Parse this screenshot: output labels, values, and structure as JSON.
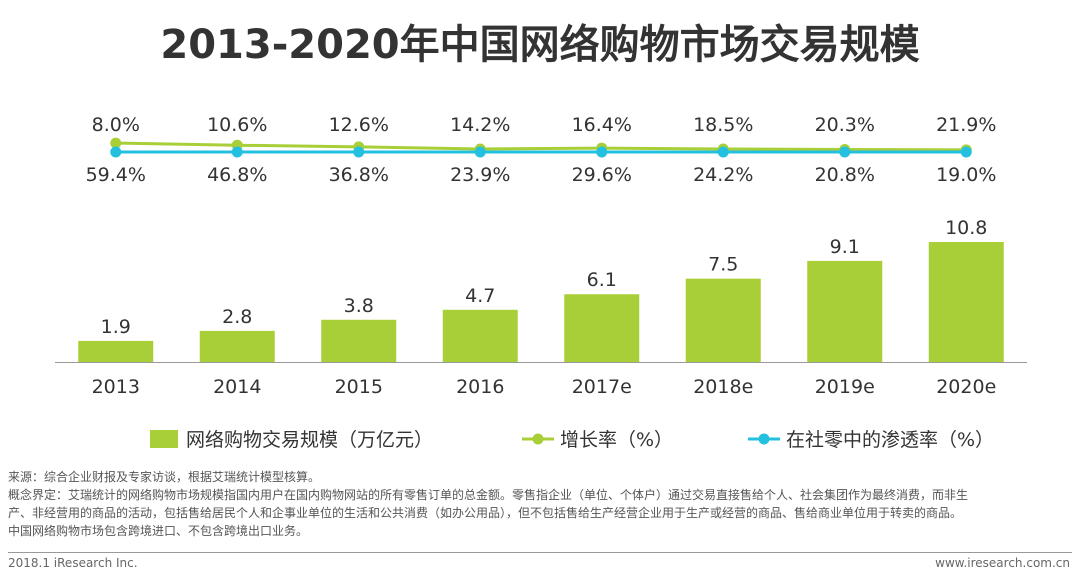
{
  "title": "2013-2020年中国网络购物市场交易规模",
  "chart_data": {
    "type": "bar",
    "categories": [
      "2013",
      "2014",
      "2015",
      "2016",
      "2017e",
      "2018e",
      "2019e",
      "2020e"
    ],
    "series": [
      {
        "name": "网络购物交易规模（万亿元）",
        "type": "bar",
        "values": [
          1.9,
          2.8,
          3.8,
          4.7,
          6.1,
          7.5,
          9.1,
          10.8
        ]
      },
      {
        "name": "增长率（%）",
        "type": "line",
        "values": [
          59.4,
          46.8,
          36.8,
          23.9,
          29.6,
          24.2,
          20.8,
          19.0
        ],
        "labels": [
          "59.4%",
          "46.8%",
          "36.8%",
          "23.9%",
          "29.6%",
          "24.2%",
          "20.8%",
          "19.0%"
        ]
      },
      {
        "name": "在社零中的渗透率（%）",
        "type": "line",
        "values": [
          8.0,
          10.6,
          12.6,
          14.2,
          16.4,
          18.5,
          20.3,
          21.9
        ],
        "labels": [
          "8.0%",
          "10.6%",
          "12.6%",
          "14.2%",
          "16.4%",
          "18.5%",
          "20.3%",
          "21.9%"
        ]
      }
    ],
    "bar_labels": [
      "1.9",
      "2.8",
      "3.8",
      "4.7",
      "6.1",
      "7.5",
      "9.1",
      "10.8"
    ],
    "colors": {
      "bar": "#a9cf38",
      "growth": "#a9cf38",
      "penetration": "#23c1df",
      "axis": "#999999"
    },
    "legend_position": "bottom"
  },
  "notes": {
    "source": "来源：综合企业财报及专家访谈，根据艾瑞统计模型核算。",
    "definition_1": "概念界定：艾瑞统计的网络购物市场规模指国内用户在国内购物网站的所有零售订单的总金额。零售指企业（单位、个体户）通过交易直接售给个人、社会集团作为最终消费，而非生",
    "definition_2": "产、非经营用的商品的活动，包括售给居民个人和企事业单位的生活和公共消费（如办公用品），但不包括售给生产经营企业用于生产或经营的商品、售给商业单位用于转卖的商品。",
    "definition_3": "中国网络购物市场包含跨境进口、不包含跨境出口业务。"
  },
  "footer": {
    "left": "2018.1 iResearch Inc.",
    "right": "www.iresearch.com.cn"
  }
}
